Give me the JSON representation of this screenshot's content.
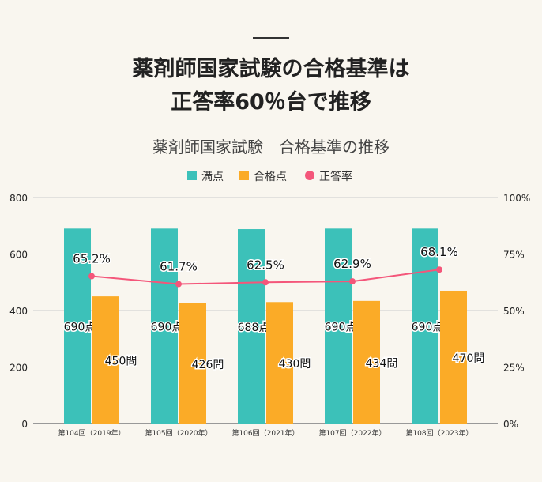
{
  "page": {
    "title_line1": "薬剤師国家試験の合格基準は",
    "title_line2": "正答率60％台で推移"
  },
  "chart_data": {
    "type": "bar",
    "title": "薬剤師国家試験　合格基準の推移",
    "categories": [
      "第104回（2019年）",
      "第105回（2020年）",
      "第106回（2021年）",
      "第107回（2022年）",
      "第108回（2023年）"
    ],
    "series": [
      {
        "name": "満点",
        "type": "bar",
        "axis": "left",
        "color": "#3cc1b9",
        "values": [
          690,
          690,
          688,
          690,
          690
        ],
        "labels": [
          "690点",
          "690点",
          "688点",
          "690点",
          "690点"
        ]
      },
      {
        "name": "合格点",
        "type": "bar",
        "axis": "left",
        "color": "#fbab27",
        "values": [
          450,
          426,
          430,
          434,
          470
        ],
        "labels": [
          "450問",
          "426問",
          "430問",
          "434問",
          "470問"
        ]
      },
      {
        "name": "正答率",
        "type": "line",
        "axis": "right",
        "color": "#f4567a",
        "values": [
          65.2,
          61.7,
          62.5,
          62.9,
          68.1
        ],
        "labels": [
          "65.2%",
          "61.7%",
          "62.5%",
          "62.9%",
          "68.1%"
        ]
      }
    ],
    "ylim": [
      0,
      800
    ],
    "yticks": [
      "0",
      "200",
      "400",
      "600",
      "800"
    ],
    "y2lim": [
      0,
      100
    ],
    "y2ticks": [
      "0%",
      "25%",
      "50%",
      "75%",
      "100%"
    ],
    "grid": true,
    "legend": "top"
  }
}
